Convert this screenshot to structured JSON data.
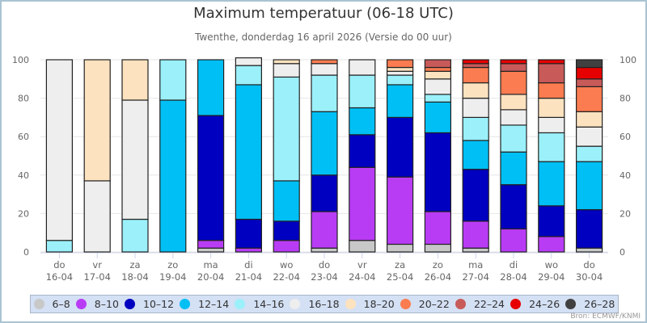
{
  "header": {
    "title": "Maximum temperatuur (06-18 UTC)",
    "subtitle": "Twenthe, donderdag 16 april 2026 (Versie do 00 uur)"
  },
  "source": "Bron: ECMWF/KNMI",
  "chart_data": {
    "type": "bar",
    "stacked": true,
    "title": "Maximum temperatuur (06-18 UTC)",
    "subtitle": "Twenthe, donderdag 16 april 2026 (Versie do 00 uur)",
    "xlabel": "",
    "ylabel": "",
    "ylim": [
      0,
      100
    ],
    "yticks": [
      0,
      20,
      40,
      60,
      80,
      100
    ],
    "y_axis_both_sides": true,
    "grid": true,
    "legend_position": "bottom",
    "categories": [
      {
        "day": "do",
        "date": "16-04"
      },
      {
        "day": "vr",
        "date": "17-04"
      },
      {
        "day": "za",
        "date": "18-04"
      },
      {
        "day": "zo",
        "date": "19-04"
      },
      {
        "day": "ma",
        "date": "20-04"
      },
      {
        "day": "di",
        "date": "21-04"
      },
      {
        "day": "wo",
        "date": "22-04"
      },
      {
        "day": "do",
        "date": "23-04"
      },
      {
        "day": "vr",
        "date": "24-04"
      },
      {
        "day": "za",
        "date": "25-04"
      },
      {
        "day": "zo",
        "date": "26-04"
      },
      {
        "day": "ma",
        "date": "27-04"
      },
      {
        "day": "di",
        "date": "28-04"
      },
      {
        "day": "wo",
        "date": "29-04"
      },
      {
        "day": "do",
        "date": "30-04"
      }
    ],
    "series": [
      {
        "name": "6-8",
        "color": "#c8c8c8",
        "values": [
          0,
          0,
          0,
          0,
          2,
          0,
          0,
          2,
          6,
          4,
          4,
          2,
          0,
          0,
          2
        ]
      },
      {
        "name": "8-10",
        "color": "#b93cf5",
        "values": [
          0,
          0,
          0,
          0,
          4,
          2,
          6,
          19,
          38,
          35,
          17,
          14,
          12,
          8,
          0
        ]
      },
      {
        "name": "10-12",
        "color": "#0000c0",
        "values": [
          0,
          0,
          0,
          0,
          65,
          15,
          10,
          19,
          17,
          31,
          41,
          27,
          23,
          16,
          20
        ]
      },
      {
        "name": "12-14",
        "color": "#00bff5",
        "values": [
          0,
          0,
          0,
          79,
          29,
          70,
          21,
          33,
          14,
          17,
          16,
          15,
          17,
          23,
          25
        ]
      },
      {
        "name": "14-16",
        "color": "#9bf0fa",
        "values": [
          6,
          0,
          17,
          21,
          0,
          10,
          54,
          19,
          17,
          5,
          4,
          12,
          14,
          15,
          8
        ]
      },
      {
        "name": "16-18",
        "color": "#eeeeee",
        "values": [
          94,
          37,
          62,
          0,
          0,
          4,
          7,
          6,
          8,
          2,
          8,
          10,
          8,
          8,
          10
        ]
      },
      {
        "name": "18-20",
        "color": "#fde2bf",
        "values": [
          0,
          63,
          21,
          0,
          0,
          0,
          2,
          0,
          0,
          2,
          4,
          8,
          8,
          10,
          8
        ]
      },
      {
        "name": "20-22",
        "color": "#fb7c50",
        "values": [
          0,
          0,
          0,
          0,
          0,
          0,
          0,
          2,
          0,
          4,
          2,
          8,
          12,
          8,
          13
        ]
      },
      {
        "name": "22-24",
        "color": "#c85a5a",
        "values": [
          0,
          0,
          0,
          0,
          0,
          0,
          0,
          0,
          0,
          0,
          4,
          2,
          4,
          10,
          4
        ]
      },
      {
        "name": "24-26",
        "color": "#e60000",
        "values": [
          0,
          0,
          0,
          0,
          0,
          0,
          0,
          0,
          0,
          0,
          0,
          2,
          2,
          2,
          6
        ]
      },
      {
        "name": "26-28",
        "color": "#404040",
        "values": [
          0,
          0,
          0,
          0,
          0,
          0,
          0,
          0,
          0,
          0,
          0,
          0,
          0,
          0,
          4
        ]
      }
    ]
  }
}
